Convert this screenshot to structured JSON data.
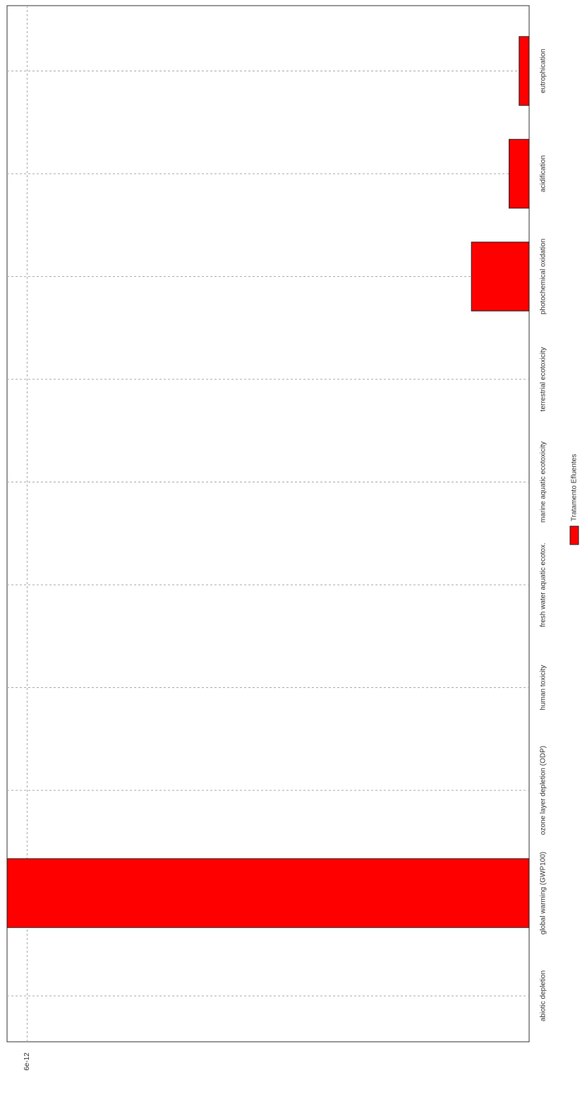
{
  "chart_data": {
    "type": "bar",
    "categories": [
      "abiotic depletion",
      "global warming (GWP100)",
      "ozone layer depletion (ODP)",
      "human toxicity",
      "fresh water aquatic ecotox.",
      "marine aquatic ecotoxicity",
      "terrestrial ecotoxicity",
      "photochemical oxidation",
      "acidification",
      "eutrophication"
    ],
    "series": [
      {
        "name": "Tratamento Efluentes",
        "color": "#ff0000",
        "values": [
          0,
          6.24e-12,
          0,
          0,
          0,
          0,
          0,
          6.9e-13,
          2.4e-13,
          1.2e-13
        ]
      }
    ],
    "ylim": [
      0,
      6.24e-12
    ],
    "yticks": [
      6e-12
    ],
    "grid": true
  }
}
